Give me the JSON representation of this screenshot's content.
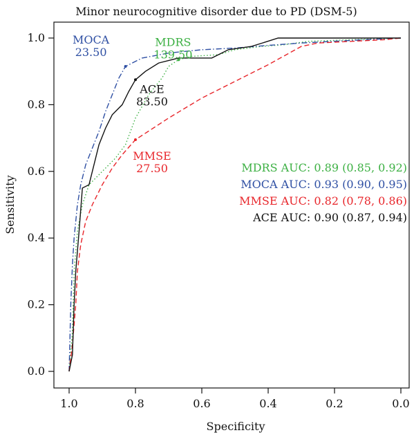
{
  "chart_data": {
    "type": "line",
    "title": "Minor neurocognitive disorder due to PD (DSM-5)",
    "xlabel": "Specificity",
    "ylabel": "Sensitivity",
    "xlim": [
      1.0,
      0.0
    ],
    "ylim": [
      0.0,
      1.0
    ],
    "x_reversed": true,
    "x_ticks": [
      "1.0",
      "0.8",
      "0.6",
      "0.4",
      "0.2",
      "0.0"
    ],
    "y_ticks": [
      "0.0",
      "0.2",
      "0.4",
      "0.6",
      "0.8",
      "1.0"
    ],
    "grid": false,
    "legend_position": "right-middle",
    "series": [
      {
        "name": "MDRS",
        "color": "#3cb043",
        "dash": "dotted",
        "cutoff_label": "MDRS",
        "cutoff_value": "139.50",
        "cutoff_point": {
          "x": 0.67,
          "y": 0.935
        },
        "auc_text": "MDRS AUC: 0.89 (0.85, 0.92)",
        "points": [
          [
            1.0,
            0.0
          ],
          [
            0.99,
            0.12
          ],
          [
            0.985,
            0.3
          ],
          [
            0.975,
            0.42
          ],
          [
            0.96,
            0.5
          ],
          [
            0.94,
            0.56
          ],
          [
            0.9,
            0.6
          ],
          [
            0.86,
            0.64
          ],
          [
            0.83,
            0.68
          ],
          [
            0.8,
            0.76
          ],
          [
            0.76,
            0.83
          ],
          [
            0.72,
            0.88
          ],
          [
            0.7,
            0.915
          ],
          [
            0.67,
            0.935
          ],
          [
            0.63,
            0.945
          ],
          [
            0.55,
            0.95
          ],
          [
            0.5,
            0.965
          ],
          [
            0.42,
            0.975
          ],
          [
            0.35,
            0.98
          ],
          [
            0.28,
            0.99
          ],
          [
            0.15,
            0.995
          ],
          [
            0.0,
            1.0
          ]
        ]
      },
      {
        "name": "MOCA",
        "color": "#2e4fa3",
        "dash": "dashdot",
        "cutoff_label": "MOCA",
        "cutoff_value": "23.50",
        "cutoff_point": {
          "x": 0.83,
          "y": 0.915
        },
        "auc_text": "MOCA AUC: 0.93 (0.90, 0.95)",
        "points": [
          [
            1.0,
            0.0
          ],
          [
            0.995,
            0.2
          ],
          [
            0.99,
            0.32
          ],
          [
            0.985,
            0.4
          ],
          [
            0.975,
            0.5
          ],
          [
            0.965,
            0.56
          ],
          [
            0.95,
            0.62
          ],
          [
            0.93,
            0.67
          ],
          [
            0.91,
            0.72
          ],
          [
            0.89,
            0.78
          ],
          [
            0.87,
            0.83
          ],
          [
            0.85,
            0.88
          ],
          [
            0.83,
            0.915
          ],
          [
            0.78,
            0.94
          ],
          [
            0.7,
            0.955
          ],
          [
            0.6,
            0.965
          ],
          [
            0.5,
            0.97
          ],
          [
            0.4,
            0.978
          ],
          [
            0.3,
            0.985
          ],
          [
            0.15,
            0.993
          ],
          [
            0.0,
            1.0
          ]
        ]
      },
      {
        "name": "MMSE",
        "color": "#e8262b",
        "dash": "dashed",
        "cutoff_label": "MMSE",
        "cutoff_value": "27.50",
        "cutoff_point": {
          "x": 0.8,
          "y": 0.695
        },
        "auc_text": "MMSE AUC: 0.82 (0.78, 0.86)",
        "points": [
          [
            1.0,
            0.0
          ],
          [
            0.99,
            0.08
          ],
          [
            0.98,
            0.2
          ],
          [
            0.975,
            0.3
          ],
          [
            0.965,
            0.38
          ],
          [
            0.95,
            0.45
          ],
          [
            0.93,
            0.5
          ],
          [
            0.9,
            0.56
          ],
          [
            0.87,
            0.61
          ],
          [
            0.84,
            0.65
          ],
          [
            0.8,
            0.695
          ],
          [
            0.7,
            0.76
          ],
          [
            0.6,
            0.82
          ],
          [
            0.5,
            0.87
          ],
          [
            0.4,
            0.92
          ],
          [
            0.3,
            0.975
          ],
          [
            0.25,
            0.985
          ],
          [
            0.15,
            0.99
          ],
          [
            0.05,
            0.995
          ],
          [
            0.0,
            1.0
          ]
        ]
      },
      {
        "name": "ACE",
        "color": "#111111",
        "dash": "solid",
        "cutoff_label": "ACE",
        "cutoff_value": "83.50",
        "cutoff_point": {
          "x": 0.8,
          "y": 0.875
        },
        "auc_text": "ACE AUC: 0.90 (0.87, 0.94)",
        "points": [
          [
            1.0,
            0.0
          ],
          [
            0.99,
            0.05
          ],
          [
            0.985,
            0.2
          ],
          [
            0.98,
            0.3
          ],
          [
            0.97,
            0.42
          ],
          [
            0.96,
            0.55
          ],
          [
            0.94,
            0.56
          ],
          [
            0.93,
            0.6
          ],
          [
            0.91,
            0.68
          ],
          [
            0.89,
            0.73
          ],
          [
            0.87,
            0.77
          ],
          [
            0.84,
            0.8
          ],
          [
            0.82,
            0.84
          ],
          [
            0.8,
            0.875
          ],
          [
            0.77,
            0.9
          ],
          [
            0.73,
            0.925
          ],
          [
            0.67,
            0.94
          ],
          [
            0.57,
            0.94
          ],
          [
            0.52,
            0.965
          ],
          [
            0.45,
            0.975
          ],
          [
            0.37,
            1.0
          ],
          [
            0.0,
            1.0
          ]
        ]
      }
    ]
  }
}
